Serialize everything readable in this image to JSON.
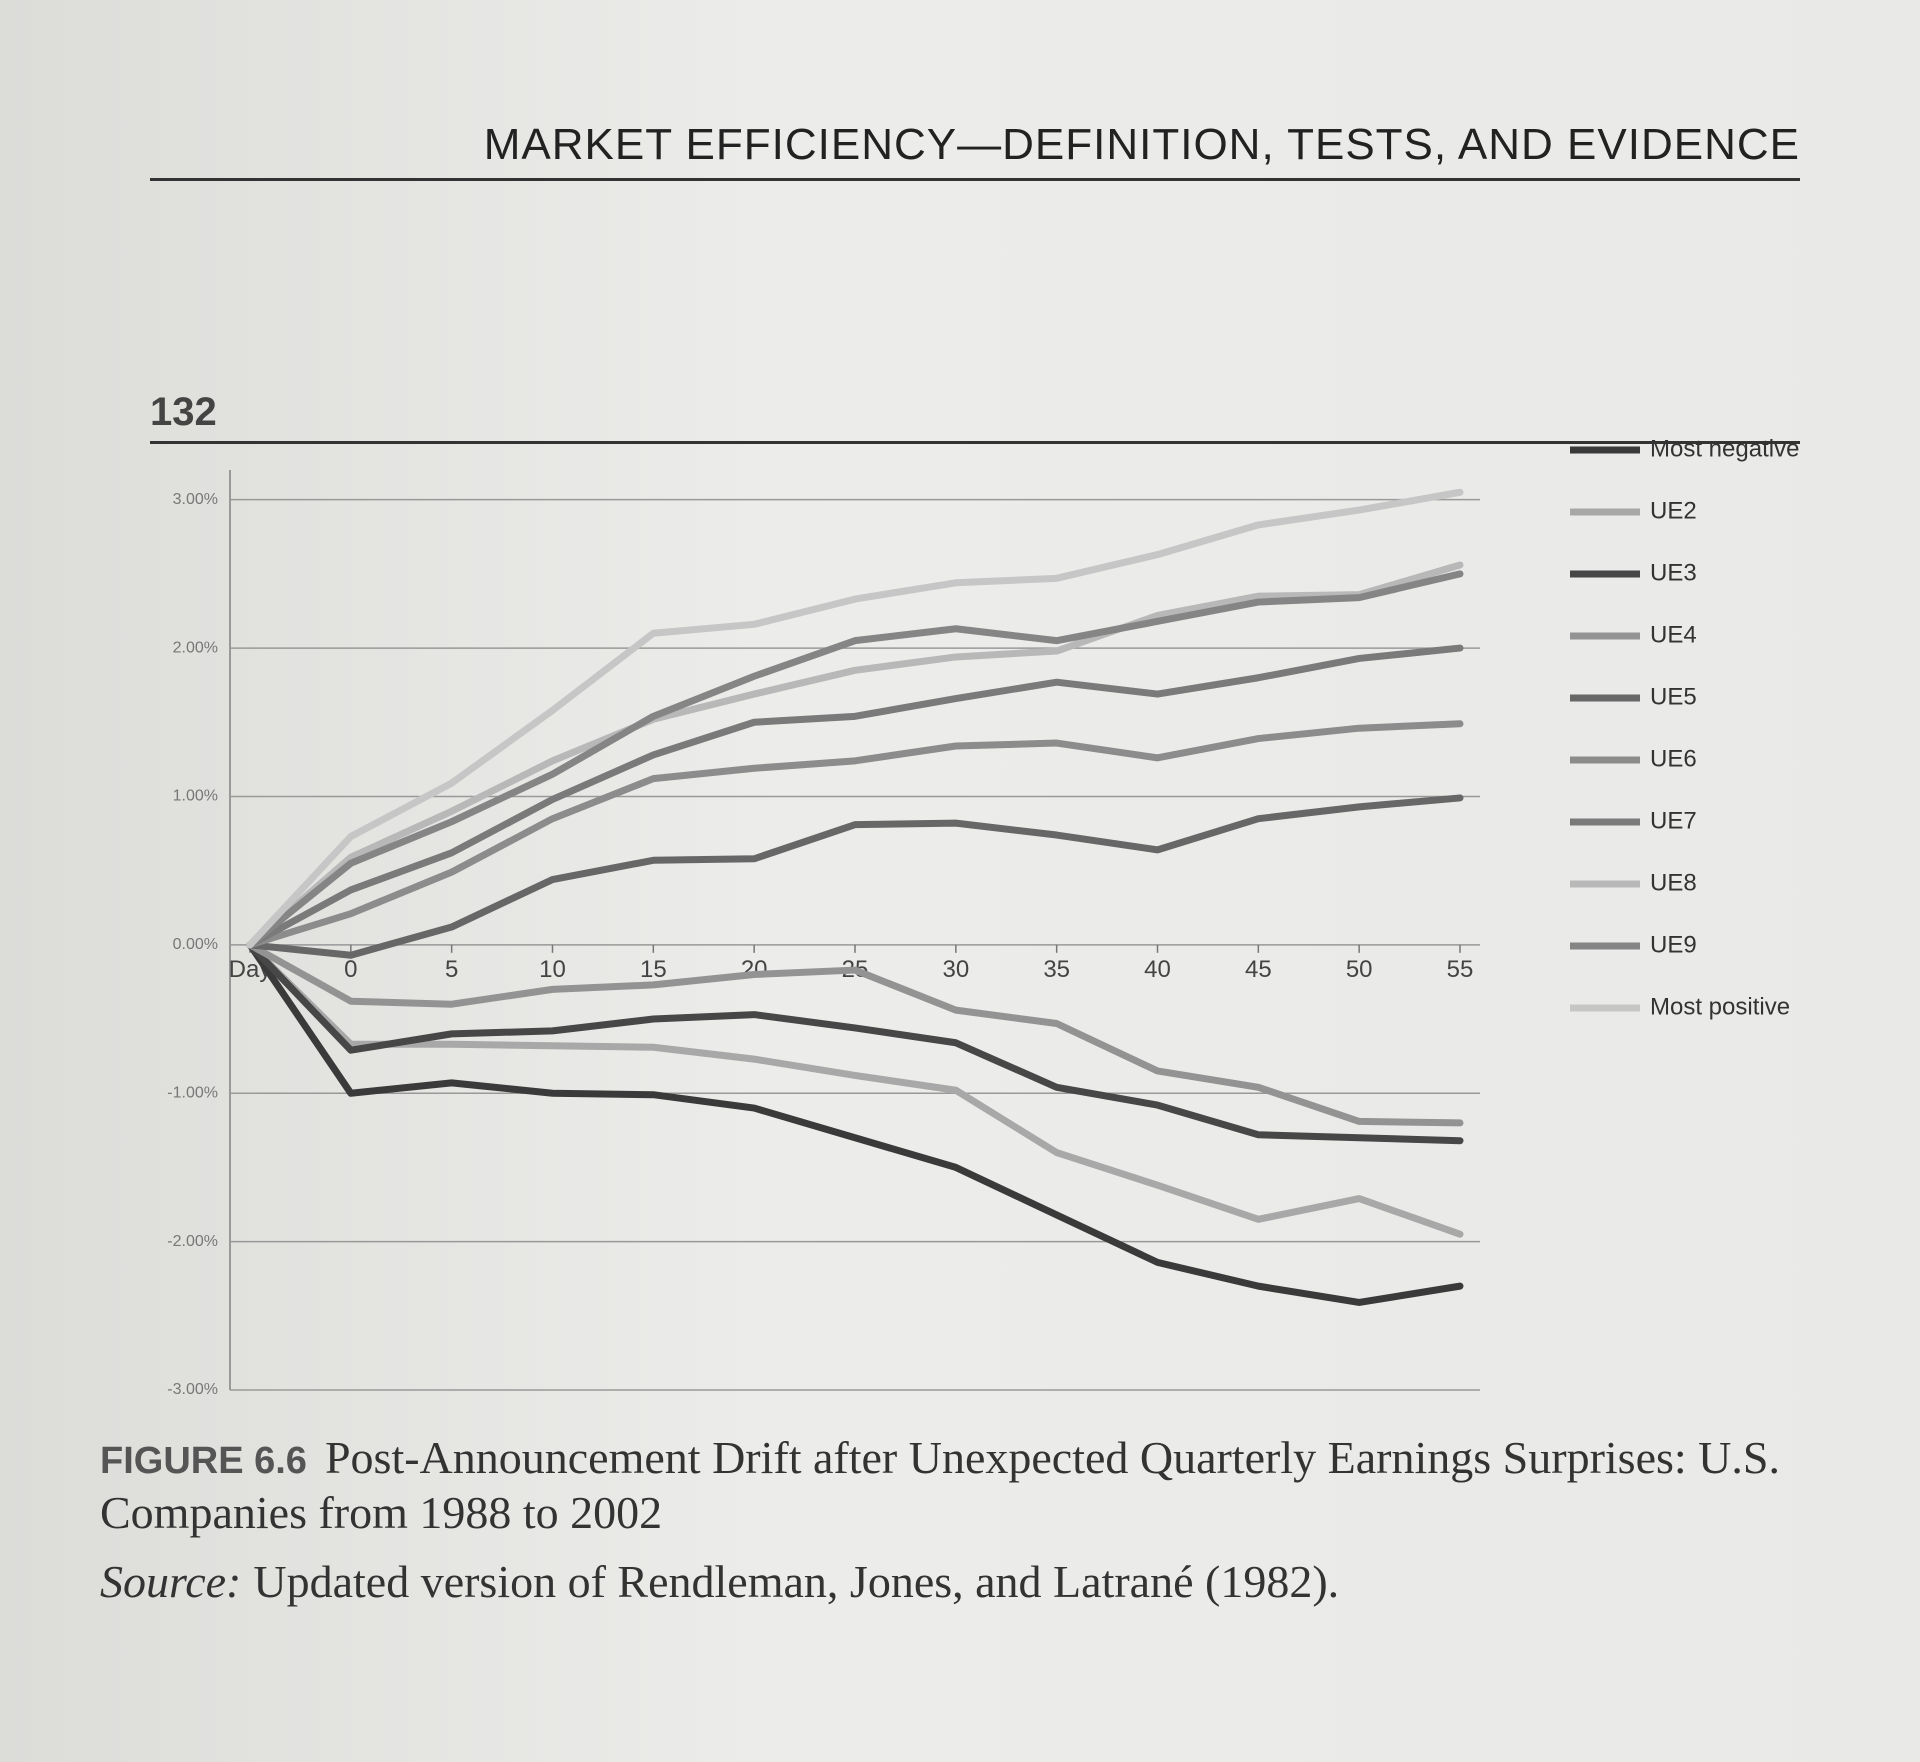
{
  "header": {
    "running_title": "MARKET EFFICIENCY—DEFINITION, TESTS, AND EVIDENCE",
    "page_number": "132"
  },
  "chart_data": {
    "type": "line",
    "categories": [
      "Day",
      "0",
      "5",
      "10",
      "15",
      "20",
      "25",
      "30",
      "35",
      "40",
      "45",
      "50",
      "55"
    ],
    "ylim": [
      -3,
      3.2
    ],
    "yticks": [
      {
        "value": -3,
        "label": "-3.00%"
      },
      {
        "value": -2,
        "label": "-2.00%"
      },
      {
        "value": -1,
        "label": "-1.00%"
      },
      {
        "value": 0,
        "label": "0.00%"
      },
      {
        "value": 1,
        "label": "1.00%"
      },
      {
        "value": 2,
        "label": "2.00%"
      },
      {
        "value": 3,
        "label": "3.00%"
      }
    ],
    "grid": true,
    "legend": "right",
    "series": [
      {
        "name": "Most negative",
        "color": "#3a3a3a",
        "values": [
          0,
          -1.0,
          -0.93,
          -1.0,
          -1.01,
          -1.1,
          -1.3,
          -1.5,
          -1.82,
          -2.14,
          -2.3,
          -2.41,
          -2.3
        ]
      },
      {
        "name": "UE2",
        "color": "#a8a8a8",
        "values": [
          0,
          -0.67,
          -0.67,
          -0.68,
          -0.69,
          -0.77,
          -0.88,
          -0.98,
          -1.4,
          -1.62,
          -1.85,
          -1.71,
          -1.95
        ]
      },
      {
        "name": "UE3",
        "color": "#474747",
        "values": [
          0,
          -0.71,
          -0.6,
          -0.58,
          -0.5,
          -0.47,
          -0.56,
          -0.66,
          -0.96,
          -1.08,
          -1.28,
          -1.3,
          -1.32
        ]
      },
      {
        "name": "UE4",
        "color": "#939393",
        "values": [
          0,
          -0.38,
          -0.4,
          -0.3,
          -0.27,
          -0.2,
          -0.17,
          -0.44,
          -0.53,
          -0.85,
          -0.96,
          -1.19,
          -1.2
        ]
      },
      {
        "name": "UE5",
        "color": "#676767",
        "values": [
          0,
          -0.07,
          0.12,
          0.44,
          0.57,
          0.58,
          0.81,
          0.82,
          0.74,
          0.64,
          0.85,
          0.93,
          0.99
        ]
      },
      {
        "name": "UE6",
        "color": "#8c8c8c",
        "values": [
          0,
          0.21,
          0.49,
          0.85,
          1.12,
          1.19,
          1.24,
          1.34,
          1.36,
          1.26,
          1.39,
          1.46,
          1.49
        ]
      },
      {
        "name": "UE7",
        "color": "#7a7a7a",
        "values": [
          0,
          0.37,
          0.62,
          0.98,
          1.28,
          1.5,
          1.54,
          1.66,
          1.77,
          1.69,
          1.8,
          1.93,
          2.0
        ]
      },
      {
        "name": "UE8",
        "color": "#b8b8b8",
        "values": [
          0,
          0.59,
          0.9,
          1.24,
          1.52,
          1.69,
          1.85,
          1.94,
          1.98,
          2.22,
          2.35,
          2.36,
          2.56
        ]
      },
      {
        "name": "UE9",
        "color": "#858585",
        "values": [
          0,
          0.55,
          0.83,
          1.15,
          1.54,
          1.81,
          2.05,
          2.13,
          2.05,
          2.18,
          2.31,
          2.34,
          2.5
        ]
      },
      {
        "name": "Most positive",
        "color": "#c6c6c6",
        "values": [
          0,
          0.73,
          1.09,
          1.58,
          2.1,
          2.16,
          2.33,
          2.44,
          2.47,
          2.63,
          2.83,
          2.93,
          3.05
        ]
      }
    ]
  },
  "caption": {
    "figure_label": "FIGURE 6.6",
    "title": "Post-Announcement Drift after Unexpected Quarterly Earnings Surprises: U.S. Companies from 1988 to 2002",
    "source_label": "Source:",
    "source_text": "Updated version of Rendleman, Jones, and Latrané (1982)."
  }
}
